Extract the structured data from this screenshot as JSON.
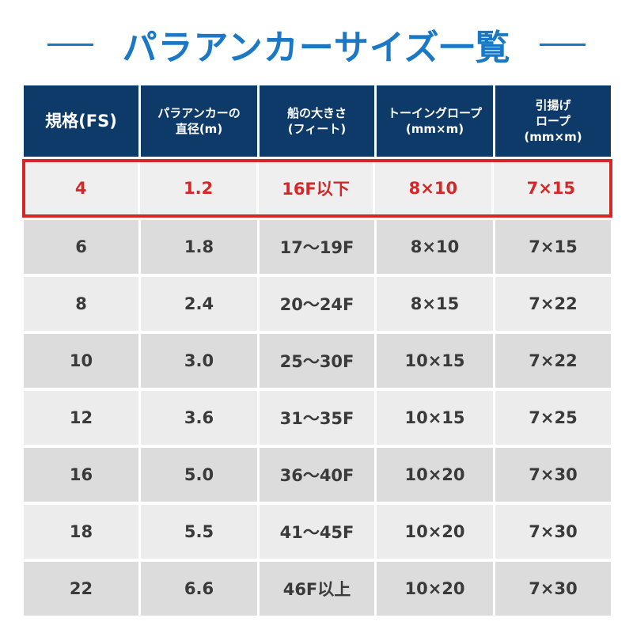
{
  "title": "パラアンカーサイズ一覧",
  "colors": {
    "accent": "#1b78c4",
    "header_bg": "#0d3a68",
    "highlight": "#d42828"
  },
  "table": {
    "headers": [
      "規格(FS)",
      "パラアンカーの\n直径(m)",
      "船の大きさ\n(フィート)",
      "トーイングロープ\n(mm×m)",
      "引揚げ\nロープ\n(mm×m)"
    ],
    "rows": [
      [
        "4",
        "1.2",
        "16F以下",
        "8×10",
        "7×15"
      ],
      [
        "6",
        "1.8",
        "17〜19F",
        "8×10",
        "7×15"
      ],
      [
        "8",
        "2.4",
        "20〜24F",
        "8×15",
        "7×22"
      ],
      [
        "10",
        "3.0",
        "25〜30F",
        "10×15",
        "7×22"
      ],
      [
        "12",
        "3.6",
        "31〜35F",
        "10×15",
        "7×25"
      ],
      [
        "16",
        "5.0",
        "36〜40F",
        "10×20",
        "7×30"
      ],
      [
        "18",
        "5.5",
        "41〜45F",
        "10×20",
        "7×30"
      ],
      [
        "22",
        "6.6",
        "46F以上",
        "10×20",
        "7×30"
      ]
    ]
  }
}
